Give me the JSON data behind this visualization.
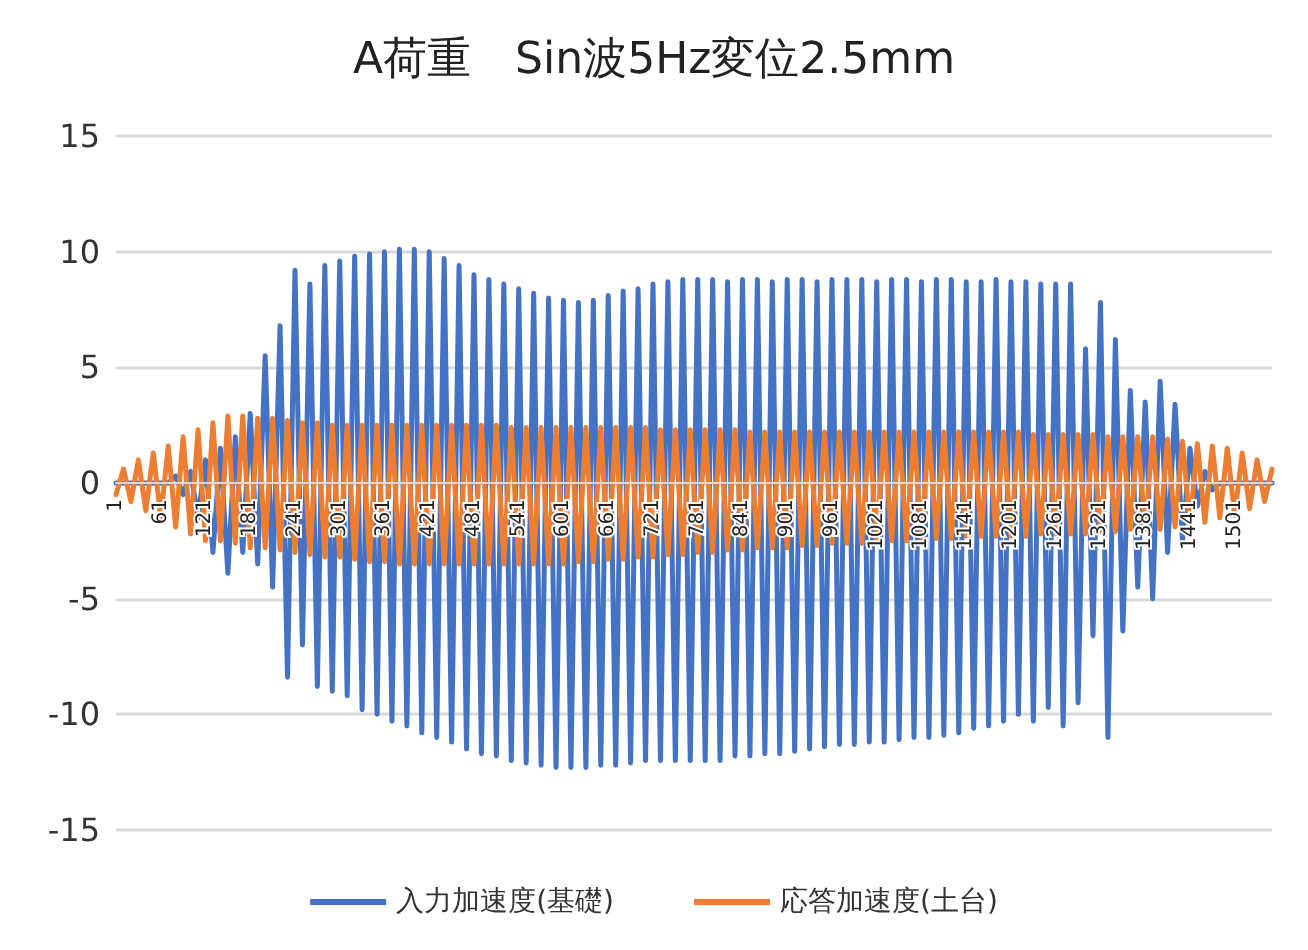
{
  "chart_data": {
    "type": "line",
    "title": "A荷重　Sin波5Hz変位2.5mm",
    "x": [
      1,
      11,
      21,
      31,
      41,
      51,
      61,
      71,
      81,
      91,
      101,
      111,
      121,
      131,
      141,
      151,
      161,
      171,
      181,
      191,
      201,
      211,
      221,
      231,
      241,
      251,
      261,
      271,
      281,
      291,
      301,
      311,
      321,
      331,
      341,
      351,
      361,
      371,
      381,
      391,
      401,
      411,
      421,
      431,
      441,
      451,
      461,
      471,
      481,
      491,
      501,
      511,
      521,
      531,
      541,
      551,
      561,
      571,
      581,
      591,
      601,
      611,
      621,
      631,
      641,
      651,
      661,
      671,
      681,
      691,
      701,
      711,
      721,
      731,
      741,
      751,
      761,
      771,
      781,
      791,
      801,
      811,
      821,
      831,
      841,
      851,
      861,
      871,
      881,
      891,
      901,
      911,
      921,
      931,
      941,
      951,
      961,
      971,
      981,
      991,
      1001,
      1011,
      1021,
      1031,
      1041,
      1051,
      1061,
      1071,
      1081,
      1091,
      1101,
      1111,
      1121,
      1131,
      1141,
      1151,
      1161,
      1171,
      1181,
      1191,
      1201,
      1211,
      1221,
      1231,
      1241,
      1251,
      1261,
      1271,
      1281,
      1291,
      1301,
      1311,
      1321,
      1331,
      1341,
      1351,
      1361,
      1371,
      1381,
      1391,
      1401,
      1411,
      1421,
      1431,
      1441,
      1451,
      1461,
      1471,
      1481,
      1491,
      1501,
      1511,
      1521,
      1531,
      1541,
      1551
    ],
    "series": [
      {
        "name": "入力加速度(基礎)",
        "color": "#4472c4",
        "values": [
          0,
          0,
          0,
          0,
          0,
          0,
          0,
          0,
          0.3,
          -0.5,
          0.5,
          -1.5,
          1,
          -3,
          1.5,
          -3.9,
          2,
          -3,
          3,
          -3.5,
          5.5,
          -4.5,
          6.8,
          -8.4,
          9.2,
          -7,
          8.6,
          -8.8,
          9.4,
          -9,
          9.6,
          -9.2,
          9.8,
          -9.8,
          9.9,
          -10,
          10,
          -10.3,
          10.1,
          -10.5,
          10.1,
          -10.8,
          10,
          -11,
          9.7,
          -11.2,
          9.4,
          -11.5,
          9,
          -11.7,
          8.8,
          -11.8,
          8.6,
          -12,
          8.4,
          -12.1,
          8.2,
          -12.2,
          8,
          -12.3,
          7.9,
          -12.3,
          7.8,
          -12.3,
          7.9,
          -12.2,
          8.1,
          -12.2,
          8.3,
          -12.1,
          8.4,
          -12,
          8.6,
          -12,
          8.7,
          -12,
          8.8,
          -12,
          8.8,
          -12,
          8.8,
          -12,
          8.7,
          -11.8,
          8.8,
          -11.8,
          8.8,
          -11.7,
          8.7,
          -11.7,
          8.8,
          -11.6,
          8.8,
          -11.5,
          8.7,
          -11.4,
          8.8,
          -11.3,
          8.8,
          -11.3,
          8.8,
          -11.2,
          8.7,
          -11.2,
          8.8,
          -11.1,
          8.8,
          -11,
          8.7,
          -11,
          8.8,
          -10.9,
          8.8,
          -10.8,
          8.7,
          -10.6,
          8.7,
          -10.5,
          8.8,
          -10.3,
          8.7,
          -10,
          8.7,
          -10.3,
          8.6,
          -9.7,
          8.6,
          -10.5,
          8.6,
          -9.5,
          5.8,
          -6.6,
          7.8,
          -11,
          6.2,
          -6.4,
          4,
          -4.5,
          3.5,
          -5,
          4.4,
          -3,
          3.4,
          -2.5,
          1.5,
          -1,
          0.5,
          -0.3,
          0,
          0,
          0,
          0,
          0,
          0,
          0,
          0
        ]
      },
      {
        "name": "応答加速度(土台)",
        "color": "#ed7d31",
        "values": [
          -0.5,
          0.6,
          -0.8,
          1,
          -1.2,
          1.3,
          -1.5,
          1.6,
          -1.9,
          2,
          -2.2,
          2.3,
          -2.5,
          2.6,
          -2.5,
          2.9,
          -2.6,
          2.9,
          -2.8,
          2.8,
          -2.8,
          2.8,
          -2.9,
          2.7,
          -3,
          2.6,
          -3.1,
          2.6,
          -3.2,
          2.5,
          -3.2,
          2.5,
          -3.3,
          2.5,
          -3.4,
          2.5,
          -3.4,
          2.5,
          -3.5,
          2.5,
          -3.5,
          2.5,
          -3.5,
          2.5,
          -3.5,
          2.5,
          -3.5,
          2.5,
          -3.5,
          2.5,
          -3.5,
          2.5,
          -3.5,
          2.4,
          -3.5,
          2.4,
          -3.5,
          2.4,
          -3.5,
          2.4,
          -3.5,
          2.4,
          -3.4,
          2.4,
          -3.4,
          2.4,
          -3.3,
          2.4,
          -3.3,
          2.4,
          -3.2,
          2.4,
          -3.2,
          2.3,
          -3.1,
          2.3,
          -3.1,
          2.3,
          -3,
          2.3,
          -3,
          2.3,
          -2.9,
          2.3,
          -2.9,
          2.2,
          -2.8,
          2.2,
          -2.8,
          2.2,
          -2.8,
          2.2,
          -2.7,
          2.2,
          -2.7,
          2.2,
          -2.6,
          2.2,
          -2.6,
          2.2,
          -2.6,
          2.2,
          -2.5,
          2.2,
          -2.5,
          2.2,
          -2.5,
          2.2,
          -2.4,
          2.2,
          -2.4,
          2.2,
          -2.4,
          2.2,
          -2.3,
          2.2,
          -2.3,
          2.2,
          -2.3,
          2.2,
          -2.3,
          2.2,
          -2.3,
          2.1,
          -2.2,
          2.1,
          -2.2,
          2.1,
          -2.2,
          2.1,
          -2.2,
          2.1,
          -2.1,
          2,
          -2.1,
          2,
          -2,
          2,
          -2,
          2,
          -2,
          1.9,
          -1.9,
          1.8,
          -1.8,
          1.7,
          -1.7,
          1.6,
          -1.5,
          1.5,
          -1.4,
          1.3,
          -1.1,
          1,
          -0.8,
          0.6
        ]
      }
    ],
    "xlim": [
      1,
      1551
    ],
    "xticks": [
      1,
      61,
      121,
      181,
      241,
      301,
      361,
      421,
      481,
      541,
      601,
      661,
      721,
      781,
      841,
      901,
      961,
      1021,
      1081,
      1141,
      1201,
      1261,
      1321,
      1381,
      1441,
      1501
    ],
    "ylim": [
      -15,
      15
    ],
    "yticks": [
      -15,
      -10,
      -5,
      0,
      5,
      10,
      15
    ],
    "grid": "y",
    "legend": "bottom",
    "marker": "none",
    "line_style": "solid"
  }
}
